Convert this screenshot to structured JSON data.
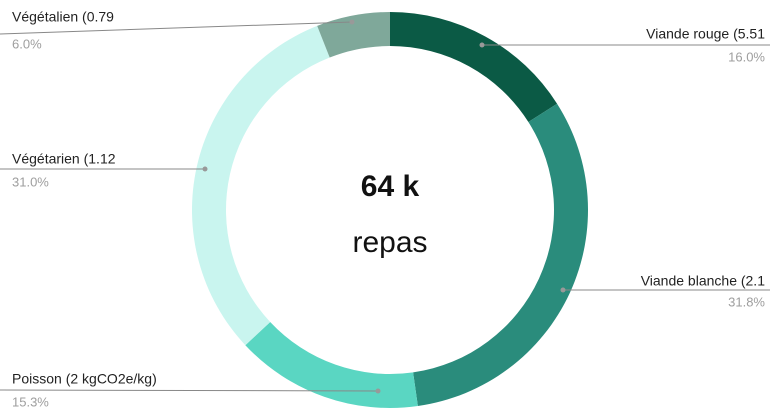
{
  "chart_data": {
    "type": "donut",
    "categories": [
      "Viande rouge (5.51",
      "Viande blanche (2.1",
      "Poisson (2 kgCO2e/kg)",
      "Végétarien (1.12",
      "Végétalien (0.79"
    ],
    "values": [
      16.0,
      31.8,
      15.3,
      31.0,
      6.0
    ],
    "value_labels": [
      "16.0%",
      "31.8%",
      "15.3%",
      "31.0%",
      "6.0%"
    ],
    "colors": [
      "#0b5a45",
      "#2a8c7c",
      "#5ad6c2",
      "#c9f5ef",
      "#7fa89a"
    ],
    "annotations": [
      "64 k",
      "repas"
    ]
  }
}
